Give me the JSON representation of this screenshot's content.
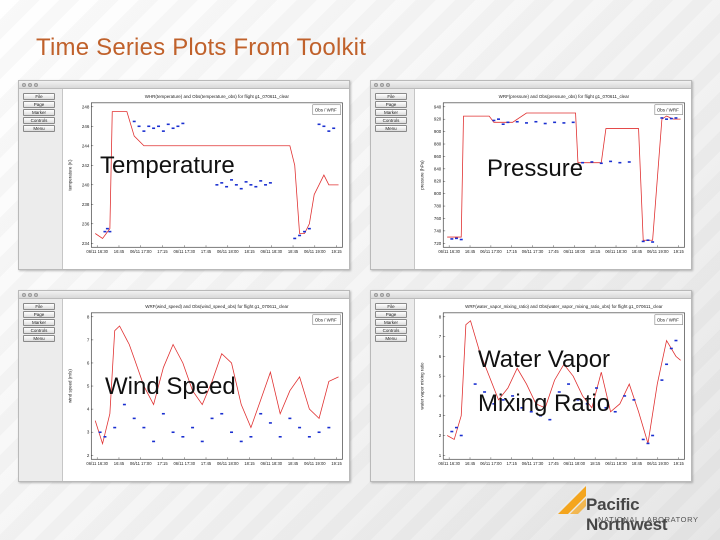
{
  "slide": {
    "title": "Time Series Plots From Toolkit"
  },
  "sidebar_buttons": [
    "File",
    "Page",
    "Marker",
    "Controls",
    "Menu"
  ],
  "windows": [
    {
      "id": "temperature",
      "overlay_label": [
        "Temperature"
      ],
      "plot_title": "WHR(temperature) and Obs(temperature_obs) for flight g1_070611_clear",
      "legend": "Obs / WRF",
      "y_axis_label": "temperature (K)",
      "y_ticks": [
        "248",
        "246",
        "244",
        "242",
        "240",
        "238",
        "236",
        "234"
      ],
      "x_ticks": [
        "06/11 16:30",
        "16:45",
        "06/11 17:00",
        "17:15",
        "06/11 17:30",
        "17:45",
        "06/11 18:00",
        "18:15",
        "06/11 18:30",
        "18:45",
        "06/11 19:00",
        "19:15"
      ]
    },
    {
      "id": "pressure",
      "overlay_label": [
        "Pressure"
      ],
      "plot_title": "WRF(pressure) and Obs(pressure_obs) for flight g1_070611_clear",
      "legend": "Obs / WRF",
      "y_axis_label": "pressure (hPa)",
      "y_ticks": [
        "940",
        "920",
        "900",
        "880",
        "860",
        "840",
        "820",
        "800",
        "780",
        "760",
        "740",
        "720"
      ],
      "x_ticks": [
        "06/11 16:30",
        "16:45",
        "06/11 17:00",
        "17:15",
        "06/11 17:30",
        "17:45",
        "06/11 18:00",
        "18:15",
        "06/11 18:30",
        "18:45",
        "06/11 19:00",
        "19:15"
      ]
    },
    {
      "id": "wind",
      "overlay_label": [
        "Wind Speed"
      ],
      "plot_title": "WRF(wind_speed) and Obs(wind_speed_obs) for flight g1_070611_clear",
      "legend": "Obs / WRF",
      "y_axis_label": "wind speed (m/s)",
      "y_ticks": [
        "8",
        "7",
        "6",
        "5",
        "4",
        "3",
        "2"
      ],
      "x_ticks": [
        "06/11 16:30",
        "16:45",
        "06/11 17:00",
        "17:15",
        "06/11 17:30",
        "17:45",
        "06/11 18:00",
        "18:15",
        "06/11 18:30",
        "18:45",
        "06/11 19:00",
        "19:15"
      ]
    },
    {
      "id": "water",
      "overlay_label": [
        "Water Vapor",
        "Mixing Ratio"
      ],
      "plot_title": "WRF(water_vapor_mixing_ratio) and Obs(water_vapor_mixing_ratio_obs) for flight g1_070611_clear",
      "legend": "Obs / WRF",
      "y_axis_label": "water vapor mixing ratio",
      "y_ticks": [
        "8",
        "7",
        "6",
        "5",
        "4",
        "3",
        "2",
        "1"
      ],
      "x_ticks": [
        "06/11 16:30",
        "16:45",
        "06/11 17:00",
        "17:15",
        "06/11 17:30",
        "17:45",
        "06/11 18:00",
        "18:15",
        "06/11 18:30",
        "18:45",
        "06/11 19:00",
        "19:15"
      ]
    }
  ],
  "logo": {
    "line1": "Pacific Northwest",
    "line2": "NATIONAL LABORATORY"
  },
  "colors": {
    "title": "#c0612b",
    "wrf_line": "#e03030",
    "obs_points": "#1a2fd0"
  },
  "chart_data": [
    {
      "type": "line",
      "xlabel": "",
      "ylabel": "temperature (K)",
      "ylim": [
        234,
        248
      ],
      "series": [
        {
          "name": "WRF",
          "x": [
            0,
            3,
            6,
            7,
            9,
            13,
            16,
            20,
            26,
            33,
            40,
            46,
            52,
            55,
            58,
            60,
            62,
            64,
            66,
            68,
            70,
            72,
            74,
            76,
            78,
            80,
            82,
            84,
            86,
            88,
            90,
            92,
            94,
            96,
            98,
            100
          ],
          "y": [
            235,
            234.5,
            235.5,
            247.5,
            247.5,
            247.5,
            245,
            244,
            244,
            244,
            244,
            244,
            244,
            244,
            244,
            244,
            244,
            244,
            244,
            244,
            244,
            244,
            244,
            244,
            244,
            244,
            242,
            235,
            235,
            236,
            239,
            240,
            241,
            240,
            240,
            240
          ]
        },
        {
          "name": "Obs",
          "x": [
            4,
            5,
            6,
            16,
            18,
            20,
            22,
            24,
            26,
            28,
            30,
            32,
            34,
            36,
            50,
            52,
            54,
            56,
            58,
            60,
            62,
            64,
            66,
            68,
            70,
            72,
            82,
            84,
            86,
            88,
            92,
            94,
            96,
            98
          ],
          "y": [
            235.2,
            235.5,
            235.2,
            246.5,
            246,
            245.5,
            246,
            245.8,
            246,
            245.5,
            246.2,
            245.8,
            246,
            246.3,
            240,
            240.2,
            239.8,
            240.5,
            240,
            239.6,
            240.3,
            240,
            239.8,
            240.4,
            240,
            240.2,
            234.5,
            234.8,
            235.2,
            235.5,
            246.2,
            246,
            245.5,
            245.8
          ]
        }
      ]
    },
    {
      "type": "line",
      "xlabel": "",
      "ylabel": "pressure (hPa)",
      "ylim": [
        720,
        940
      ],
      "series": [
        {
          "name": "WRF",
          "x": [
            0,
            6,
            7,
            18,
            20,
            28,
            34,
            42,
            50,
            55,
            56,
            66,
            68,
            78,
            82,
            84,
            88,
            92,
            94,
            97,
            100
          ],
          "y": [
            730,
            730,
            925,
            925,
            915,
            915,
            930,
            930,
            930,
            930,
            850,
            850,
            905,
            905,
            905,
            725,
            725,
            920,
            925,
            920,
            920
          ]
        },
        {
          "name": "Obs",
          "x": [
            2,
            4,
            6,
            20,
            22,
            24,
            26,
            30,
            34,
            38,
            42,
            46,
            50,
            54,
            58,
            62,
            66,
            70,
            74,
            78,
            84,
            86,
            88,
            92,
            94,
            96,
            98
          ],
          "y": [
            727,
            728,
            726,
            918,
            920,
            912,
            915,
            916,
            914,
            916,
            913,
            915,
            914,
            915,
            850,
            851,
            849,
            852,
            850,
            851,
            723,
            725,
            722,
            922,
            920,
            921,
            922
          ]
        }
      ]
    },
    {
      "type": "line",
      "xlabel": "",
      "ylabel": "wind speed (m/s)",
      "ylim": [
        2,
        8
      ],
      "series": [
        {
          "name": "WRF",
          "x": [
            0,
            3,
            6,
            8,
            10,
            14,
            16,
            20,
            24,
            28,
            32,
            36,
            40,
            44,
            48,
            52,
            56,
            60,
            64,
            68,
            72,
            76,
            80,
            84,
            88,
            92,
            96,
            100
          ],
          "y": [
            3.5,
            2.5,
            3.8,
            7.4,
            7.6,
            6.8,
            6.2,
            5.0,
            4.2,
            5.8,
            6.8,
            6.0,
            4.8,
            4.2,
            5.2,
            6.4,
            6.0,
            4.2,
            3.2,
            4.4,
            5.6,
            3.8,
            4.8,
            5.4,
            4.0,
            3.6,
            5.2,
            5.4
          ]
        },
        {
          "name": "Obs",
          "x": [
            2,
            4,
            8,
            12,
            16,
            20,
            24,
            28,
            32,
            36,
            40,
            44,
            48,
            52,
            56,
            60,
            64,
            68,
            72,
            76,
            80,
            84,
            88,
            92,
            96
          ],
          "y": [
            3.0,
            2.8,
            3.2,
            4.2,
            3.6,
            3.2,
            2.6,
            3.8,
            3.0,
            2.8,
            3.2,
            2.6,
            3.6,
            3.8,
            3.0,
            2.6,
            2.8,
            3.8,
            3.4,
            2.8,
            3.6,
            3.2,
            2.8,
            3.0,
            3.2
          ]
        }
      ]
    },
    {
      "type": "line",
      "xlabel": "",
      "ylabel": "water vapor mixing ratio",
      "ylim": [
        1,
        8
      ],
      "series": [
        {
          "name": "WRF",
          "x": [
            0,
            3,
            6,
            8,
            10,
            14,
            18,
            22,
            26,
            30,
            34,
            38,
            42,
            46,
            50,
            54,
            58,
            62,
            66,
            70,
            74,
            78,
            82,
            86,
            90,
            94,
            98,
            100
          ],
          "y": [
            2.0,
            1.8,
            3.0,
            7.6,
            7.8,
            6.2,
            5.0,
            3.8,
            4.4,
            5.4,
            4.6,
            3.6,
            3.4,
            4.8,
            5.6,
            5.0,
            4.0,
            3.4,
            5.2,
            3.2,
            3.6,
            4.6,
            3.2,
            1.6,
            4.6,
            6.8,
            6.0,
            5.8
          ]
        },
        {
          "name": "Obs",
          "x": [
            2,
            4,
            6,
            12,
            16,
            20,
            24,
            28,
            32,
            36,
            40,
            44,
            48,
            52,
            56,
            60,
            64,
            68,
            72,
            76,
            80,
            84,
            86,
            88,
            92,
            94,
            96,
            98
          ],
          "y": [
            2.2,
            2.4,
            2.0,
            4.6,
            4.2,
            3.6,
            3.8,
            4.0,
            3.4,
            3.2,
            3.0,
            2.8,
            4.2,
            4.6,
            3.8,
            3.6,
            4.4,
            3.4,
            3.2,
            4.0,
            3.8,
            1.8,
            1.6,
            2.0,
            4.8,
            5.6,
            6.4,
            6.8
          ]
        }
      ]
    }
  ]
}
